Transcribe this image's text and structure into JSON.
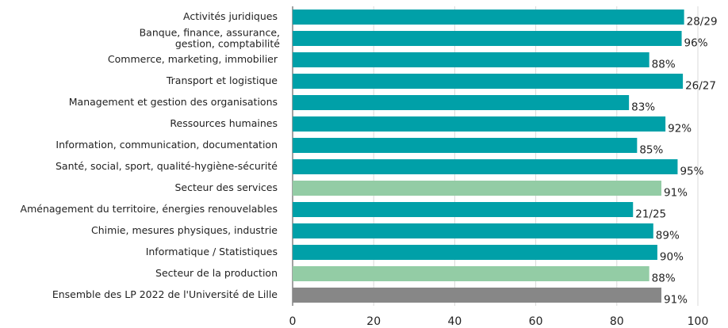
{
  "chart_data": {
    "type": "barh",
    "categories": [
      "Activités juridiques",
      [
        "Banque, finance, assurance,",
        "gestion, comptabilité"
      ],
      "Commerce, marketing, immobilier",
      "Transport et logistique",
      "Management et gestion des organisations",
      "Ressources humaines",
      "Information, communication, documentation",
      "Santé, social, sport, qualité-hygiène-sécurité",
      "Secteur des services",
      "Aménagement du territoire, énergies renouvelables",
      "Chimie, mesures physiques, industrie",
      "Informatique / Statistiques",
      "Secteur de la production",
      "Ensemble des LP 2022 de l'Université de Lille"
    ],
    "values": [
      96.6,
      96,
      88,
      96.3,
      83,
      92,
      85,
      95,
      91,
      84,
      89,
      90,
      88,
      91
    ],
    "value_labels": [
      "28/29",
      "96%",
      "88%",
      "26/27",
      "83%",
      "92%",
      "85%",
      "95%",
      "91%",
      "21/25",
      "89%",
      "90%",
      "88%",
      "91%"
    ],
    "colors": [
      "#00a0a8",
      "#00a0a8",
      "#00a0a8",
      "#00a0a8",
      "#00a0a8",
      "#00a0a8",
      "#00a0a8",
      "#00a0a8",
      "#93cca5",
      "#00a0a8",
      "#00a0a8",
      "#00a0a8",
      "#93cca5",
      "#878787"
    ],
    "xlim": [
      0,
      100
    ],
    "xticks": [
      0,
      20,
      40,
      60,
      80,
      100
    ],
    "grid": true
  }
}
